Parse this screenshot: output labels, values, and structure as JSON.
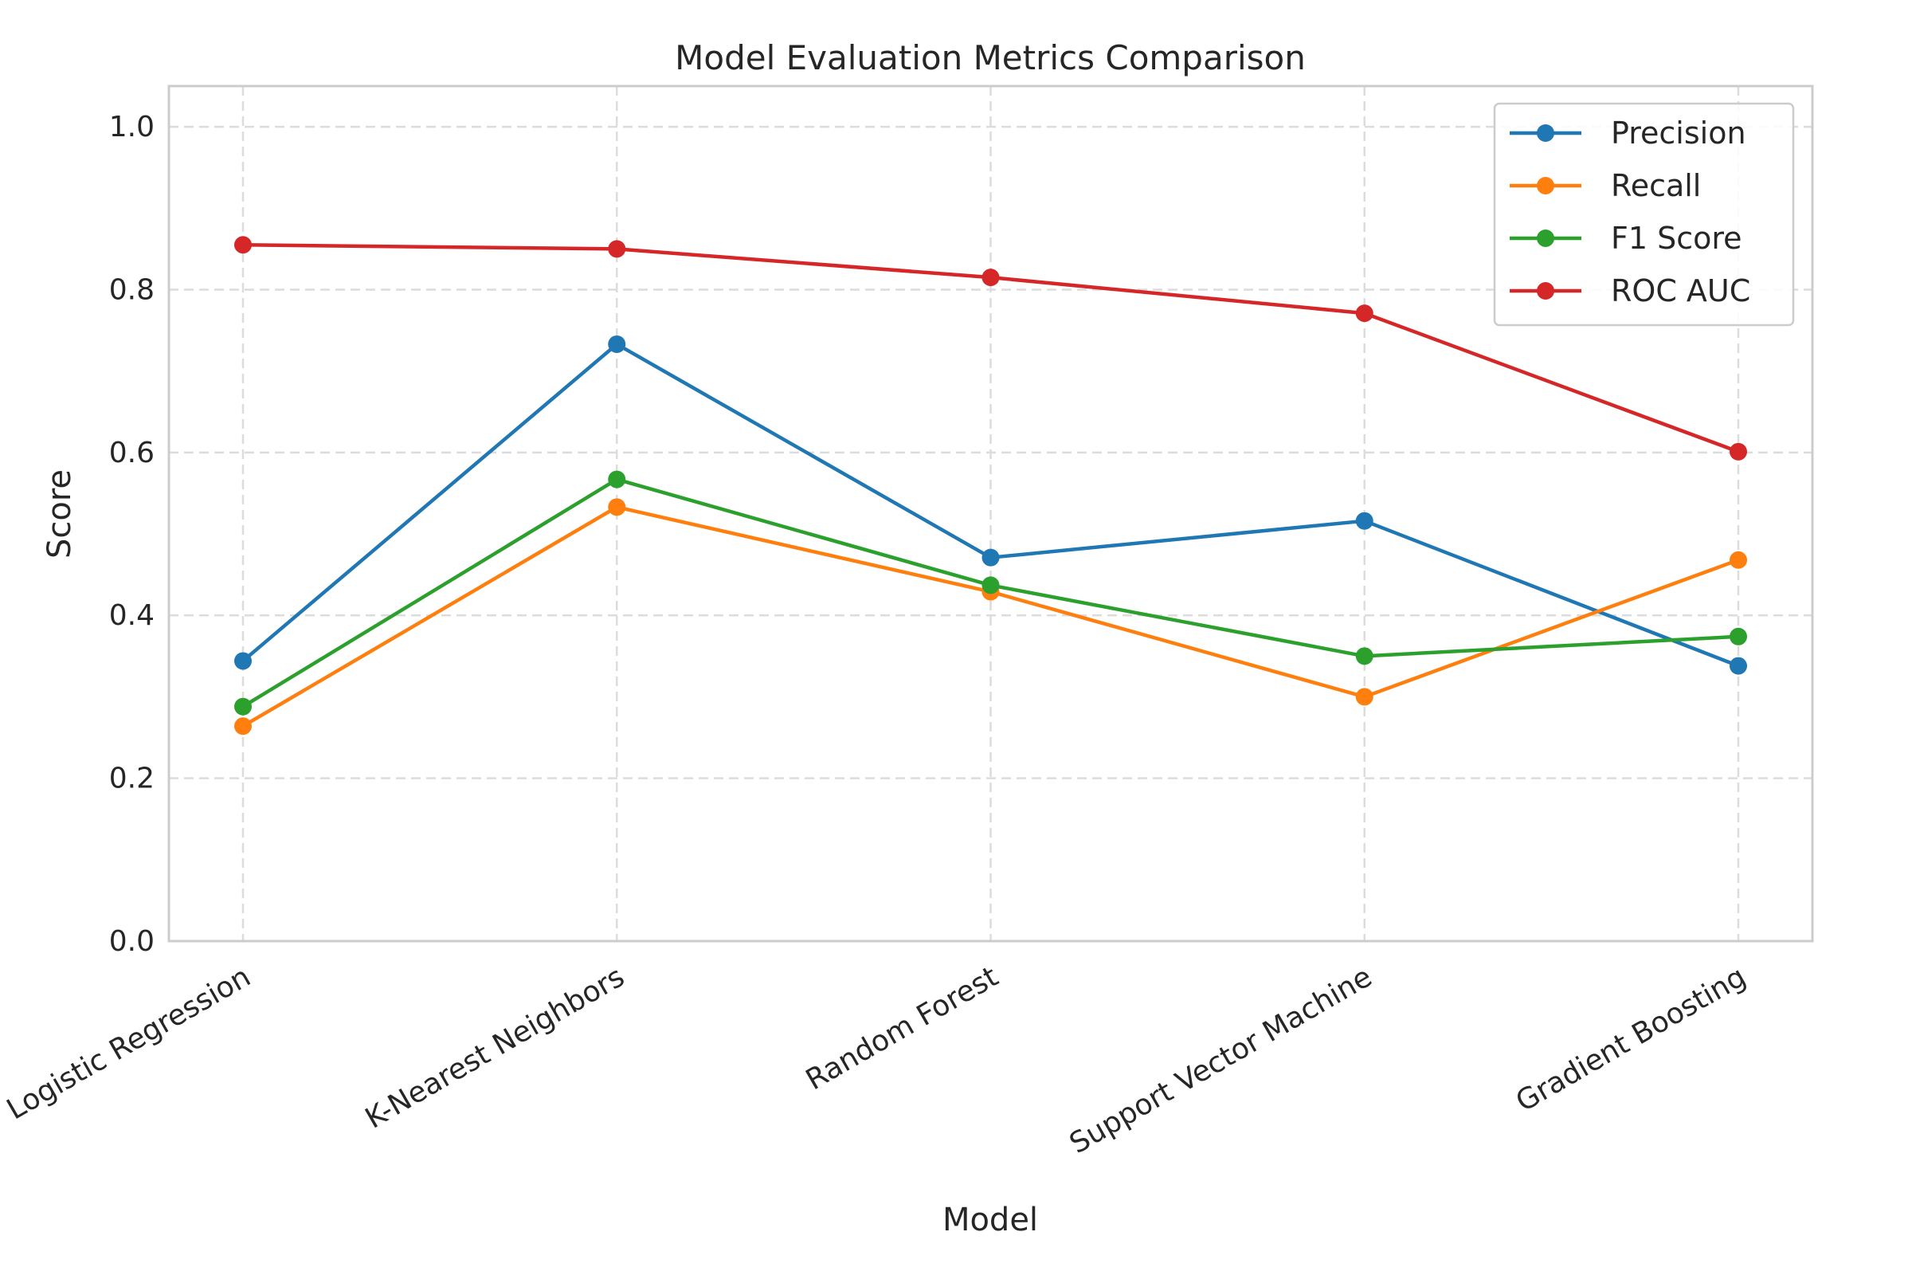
{
  "chart_data": {
    "type": "line",
    "title": "Model Evaluation Metrics Comparison",
    "xlabel": "Model",
    "ylabel": "Score",
    "categories": [
      "Logistic Regression",
      "K-Nearest Neighbors",
      "Random Forest",
      "Support Vector Machine",
      "Gradient Boosting"
    ],
    "ylim": [
      0,
      1.05
    ],
    "yticks": [
      "0.0",
      "0.2",
      "0.4",
      "0.6",
      "0.8",
      "1.0"
    ],
    "grid": true,
    "legend_position": "top-right",
    "series": [
      {
        "name": "Precision",
        "color": "#1f77b4",
        "values": [
          0.344,
          0.733,
          0.471,
          0.516,
          0.338
        ]
      },
      {
        "name": "Recall",
        "color": "#ff7f0e",
        "values": [
          0.264,
          0.533,
          0.429,
          0.3,
          0.468
        ]
      },
      {
        "name": "F1 Score",
        "color": "#2ca02c",
        "values": [
          0.288,
          0.567,
          0.437,
          0.35,
          0.374
        ]
      },
      {
        "name": "ROC AUC",
        "color": "#d62728",
        "values": [
          0.855,
          0.85,
          0.815,
          0.771,
          0.601
        ]
      }
    ]
  }
}
